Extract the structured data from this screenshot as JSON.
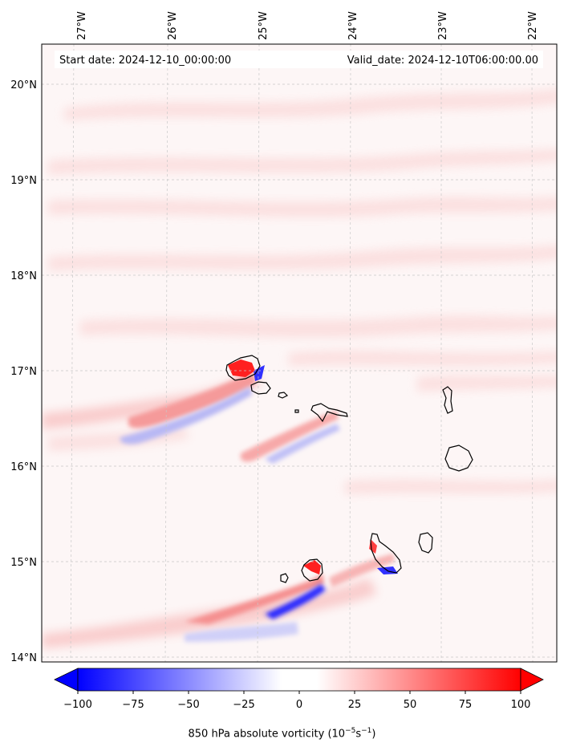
{
  "map": {
    "start_label": "Start date: 2024-12-10_00:00:00",
    "valid_label": "Valid_date: 2024-12-10T06:00:00.00",
    "lon_ticks": [
      "27°W",
      "26°W",
      "25°W",
      "24°W",
      "23°W",
      "22°W"
    ],
    "lat_ticks": [
      "20°N",
      "19°N",
      "18°N",
      "17°N",
      "16°N",
      "15°N",
      "14°N"
    ],
    "field_name": "850 hPa absolute vorticity",
    "colors": {
      "negative": "#0000ff",
      "neutral": "#ffffff",
      "positive": "#ff0000",
      "coast": "#000000",
      "grid": "#bbbbbb"
    }
  },
  "colorbar": {
    "labels": [
      "−100",
      "−75",
      "−50",
      "−25",
      "0",
      "25",
      "50",
      "75",
      "100"
    ],
    "values": [
      -100,
      -75,
      -50,
      -25,
      0,
      25,
      50,
      75,
      100
    ],
    "title_main": "850 hPa absolute vorticity (10",
    "title_exp1": "−5",
    "title_unit": "s",
    "title_exp2": "−1",
    "title_close": ")"
  }
}
